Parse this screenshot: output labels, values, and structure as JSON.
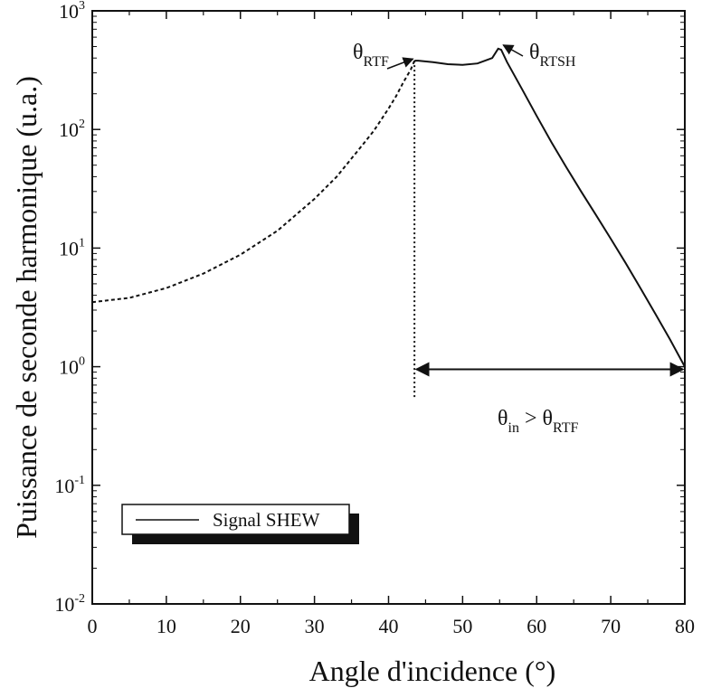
{
  "chart_data": {
    "type": "line",
    "xlabel": "Angle d'incidence (°)",
    "ylabel": "Puissance de seconde harmonique (u.a.)",
    "xlim": [
      0,
      80
    ],
    "ylim": [
      0.01,
      1000
    ],
    "yscale": "log",
    "x_ticks": [
      0,
      10,
      20,
      30,
      40,
      50,
      60,
      70,
      80
    ],
    "y_ticks": [
      {
        "value": 0.01,
        "base": "10",
        "exp": "-2"
      },
      {
        "value": 0.1,
        "base": "10",
        "exp": "-1"
      },
      {
        "value": 1,
        "base": "10",
        "exp": "0"
      },
      {
        "value": 10,
        "base": "10",
        "exp": "1"
      },
      {
        "value": 100,
        "base": "10",
        "exp": "2"
      },
      {
        "value": 1000,
        "base": "10",
        "exp": "3"
      }
    ],
    "grid": false,
    "legend": {
      "position": "bottom-left",
      "label": "Signal SHEW"
    },
    "series": [
      {
        "name": "Signal SHEW",
        "segments": [
          {
            "style": "dashed",
            "x": [
              0,
              5,
              10,
              15,
              20,
              25,
              30,
              33,
              36,
              38,
              40,
              41,
              42,
              43,
              43.5
            ],
            "y": [
              3.5,
              3.8,
              4.6,
              6.1,
              8.8,
              14,
              26,
              40,
              68,
              97,
              150,
              190,
              250,
              320,
              380
            ]
          },
          {
            "style": "solid",
            "x": [
              43.5,
              44,
              46,
              48,
              50,
              52,
              54,
              54.8,
              55.2,
              56,
              58,
              60,
              62,
              64,
              66,
              68,
              70,
              72,
              74,
              76,
              78,
              80
            ],
            "y": [
              380,
              380,
              370,
              355,
              350,
              360,
              400,
              480,
              470,
              370,
              220,
              130,
              78,
              48,
              30,
              19,
              12,
              7.5,
              4.6,
              2.8,
              1.7,
              1.0
            ]
          }
        ]
      }
    ],
    "vertical_marker": {
      "x": 43.5,
      "style": "dotted"
    },
    "annotations": [
      {
        "name": "theta-rtf",
        "base": "θ",
        "sub": "RTF",
        "x": 43.5,
        "y": 380
      },
      {
        "name": "theta-rtsh",
        "base": "θ",
        "sub": "RTSH",
        "x": 55,
        "y": 480
      }
    ],
    "range_arrow": {
      "x_start": 43.5,
      "x_end": 80,
      "y": 0.95,
      "label": {
        "t1": "θ",
        "s1": "in",
        "op": " > ",
        "t2": "θ",
        "s2": "RTF"
      }
    }
  }
}
